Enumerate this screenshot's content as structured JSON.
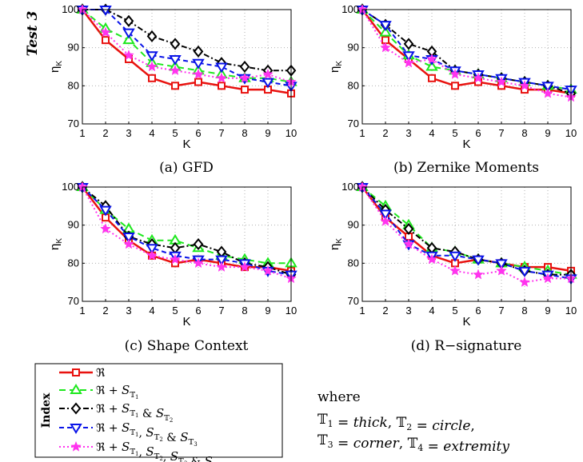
{
  "side_label": "Test 3",
  "chart_data": [
    {
      "type": "line",
      "caption": "(a) GFD",
      "xlabel": "K",
      "ylabel": "η_K",
      "x": [
        1,
        2,
        3,
        4,
        5,
        6,
        7,
        8,
        9,
        10
      ],
      "xlim": [
        1,
        10
      ],
      "ylim": [
        70,
        100
      ],
      "yticks": [
        70,
        80,
        90,
        100
      ],
      "grid": true,
      "series": [
        {
          "name": "ℜ",
          "values": [
            100,
            92,
            87,
            82,
            80,
            81,
            80,
            79,
            79,
            78
          ]
        },
        {
          "name": "ℜ + S_T1",
          "values": [
            100,
            95,
            92,
            86,
            85,
            84,
            83,
            82,
            82,
            81
          ]
        },
        {
          "name": "ℜ + S_T1 & S_T2",
          "values": [
            100,
            100,
            97,
            93,
            91,
            89,
            86,
            85,
            84,
            84
          ]
        },
        {
          "name": "ℜ + S_T1, S_T2 & S_T3",
          "values": [
            100,
            100,
            94,
            88,
            87,
            86,
            85,
            82,
            81,
            80
          ]
        },
        {
          "name": "ℜ + S_T1, S_T2, S_T3 & S_T4",
          "values": [
            100,
            94,
            88,
            85,
            84,
            83,
            82,
            82,
            83,
            81
          ]
        }
      ]
    },
    {
      "type": "line",
      "caption": "(b) Zernike Moments",
      "xlabel": "K",
      "ylabel": "η_K",
      "x": [
        1,
        2,
        3,
        4,
        5,
        6,
        7,
        8,
        9,
        10
      ],
      "xlim": [
        1,
        10
      ],
      "ylim": [
        70,
        100
      ],
      "yticks": [
        70,
        80,
        90,
        100
      ],
      "grid": true,
      "series": [
        {
          "name": "ℜ",
          "values": [
            100,
            92,
            87,
            82,
            80,
            81,
            80,
            79,
            79,
            78
          ]
        },
        {
          "name": "ℜ + S_T1",
          "values": [
            100,
            94,
            88,
            85,
            84,
            83,
            82,
            81,
            80,
            79
          ]
        },
        {
          "name": "ℜ + S_T1 & S_T2",
          "values": [
            100,
            96,
            91,
            89,
            84,
            83,
            82,
            81,
            80,
            78
          ]
        },
        {
          "name": "ℜ + S_T1, S_T2 & S_T3",
          "values": [
            100,
            96,
            88,
            87,
            84,
            83,
            82,
            81,
            80,
            79
          ]
        },
        {
          "name": "ℜ + S_T1, S_T2, S_T3 & S_T4",
          "values": [
            100,
            90,
            86,
            87,
            83,
            82,
            81,
            80,
            78,
            77
          ]
        }
      ]
    },
    {
      "type": "line",
      "caption": "(c) Shape Context",
      "xlabel": "K",
      "ylabel": "η_K",
      "x": [
        1,
        2,
        3,
        4,
        5,
        6,
        7,
        8,
        9,
        10
      ],
      "xlim": [
        1,
        10
      ],
      "ylim": [
        70,
        100
      ],
      "yticks": [
        70,
        80,
        90,
        100
      ],
      "grid": true,
      "series": [
        {
          "name": "ℜ",
          "values": [
            100,
            92,
            86,
            82,
            80,
            81,
            80,
            79,
            79,
            78
          ]
        },
        {
          "name": "ℜ + S_T1",
          "values": [
            100,
            94,
            89,
            86,
            86,
            84,
            82,
            81,
            80,
            80
          ]
        },
        {
          "name": "ℜ + S_T1 & S_T2",
          "values": [
            100,
            95,
            87,
            85,
            84,
            85,
            83,
            80,
            79,
            77
          ]
        },
        {
          "name": "ℜ + S_T1, S_T2 & S_T3",
          "values": [
            100,
            94,
            87,
            84,
            82,
            81,
            81,
            80,
            78,
            77
          ]
        },
        {
          "name": "ℜ + S_T1, S_T2, S_T3 & S_T4",
          "values": [
            100,
            89,
            85,
            82,
            81,
            80,
            79,
            79,
            78,
            76
          ]
        }
      ]
    },
    {
      "type": "line",
      "caption": "(d) R−signature",
      "xlabel": "K",
      "ylabel": "η_K",
      "x": [
        1,
        2,
        3,
        4,
        5,
        6,
        7,
        8,
        9,
        10
      ],
      "xlim": [
        1,
        10
      ],
      "ylim": [
        70,
        100
      ],
      "yticks": [
        70,
        80,
        90,
        100
      ],
      "grid": true,
      "series": [
        {
          "name": "ℜ",
          "values": [
            100,
            92,
            87,
            82,
            80,
            81,
            80,
            79,
            79,
            78
          ]
        },
        {
          "name": "ℜ + S_T1",
          "values": [
            100,
            95,
            90,
            84,
            83,
            81,
            80,
            79,
            78,
            77
          ]
        },
        {
          "name": "ℜ + S_T1 & S_T2",
          "values": [
            100,
            94,
            89,
            84,
            83,
            81,
            80,
            78,
            77,
            77
          ]
        },
        {
          "name": "ℜ + S_T1, S_T2 & S_T3",
          "values": [
            100,
            93,
            85,
            82,
            82,
            81,
            80,
            78,
            77,
            76
          ]
        },
        {
          "name": "ℜ + S_T1, S_T2, S_T3 & S_T4",
          "values": [
            100,
            91,
            85,
            81,
            78,
            77,
            78,
            75,
            76,
            76
          ]
        }
      ]
    }
  ],
  "legend": {
    "title": "Index",
    "entries": [
      {
        "base": "ℜ",
        "parts": []
      },
      {
        "base": "ℜ + ",
        "parts": [
          "1"
        ]
      },
      {
        "base": "ℜ + ",
        "parts": [
          "1",
          " & ",
          "2"
        ]
      },
      {
        "base": "ℜ + ",
        "parts": [
          "1",
          ", ",
          "2",
          " & ",
          "3"
        ]
      },
      {
        "base": "ℜ + ",
        "parts": [
          "1",
          ", ",
          "2",
          ", ",
          "3",
          " & ",
          "4"
        ]
      }
    ]
  },
  "series_styles": [
    {
      "color": "#e8120f",
      "marker": "square",
      "dash": ""
    },
    {
      "color": "#1ee81e",
      "marker": "triangle-up",
      "dash": "8,5"
    },
    {
      "color": "#000000",
      "marker": "diamond",
      "dash": "7,3,2,3"
    },
    {
      "color": "#0a14e8",
      "marker": "triangle-down",
      "dash": "6,4"
    },
    {
      "color": "#ff33ee",
      "marker": "star",
      "dash": "2,3"
    }
  ],
  "where": {
    "intro": "where",
    "line1": [
      {
        "t": "𝕋",
        "it": false
      },
      {
        "t": "1",
        "sub": true
      },
      {
        "t": " = ",
        "it": false
      },
      {
        "t": "thick",
        "it": true
      },
      {
        "t": ", ",
        "it": false
      },
      {
        "t": "𝕋",
        "it": false
      },
      {
        "t": "2",
        "sub": true
      },
      {
        "t": " = ",
        "it": false
      },
      {
        "t": "circle",
        "it": true
      },
      {
        "t": ",",
        "it": false
      }
    ],
    "line2": [
      {
        "t": "𝕋",
        "it": false
      },
      {
        "t": "3",
        "sub": true
      },
      {
        "t": " = ",
        "it": false
      },
      {
        "t": "corner",
        "it": true
      },
      {
        "t": ", ",
        "it": false
      },
      {
        "t": "𝕋",
        "it": false
      },
      {
        "t": "4",
        "sub": true
      },
      {
        "t": " = ",
        "it": false
      },
      {
        "t": "extremity",
        "it": true
      }
    ]
  }
}
